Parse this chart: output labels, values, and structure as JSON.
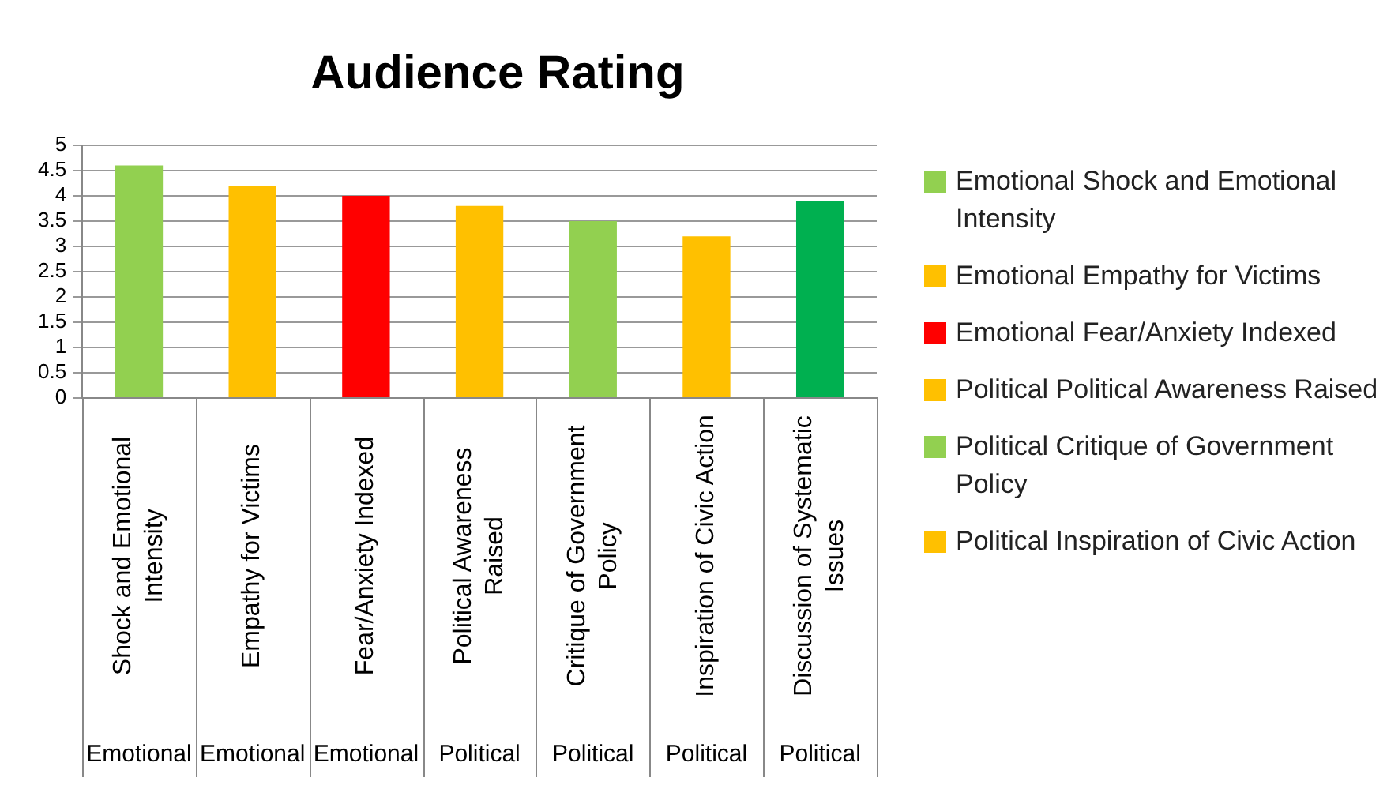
{
  "chart_data": {
    "type": "bar",
    "title": "Audience Rating",
    "categories": [
      "Shock and Emotional Intensity",
      "Empathy for Victims",
      "Fear/Anxiety Indexed",
      "Political Awareness Raised",
      "Critique of Government Policy",
      "Inspiration of Civic Action",
      "Discussion of Systematic Issues"
    ],
    "series": [
      {
        "name": "Emotional   Shock and Emotional Intensity",
        "color": "#92d050",
        "values": [
          4.6,
          null,
          null,
          null,
          null,
          null,
          null
        ]
      },
      {
        "name": "Emotional    Empathy for Victims",
        "color": "#ffc000",
        "values": [
          null,
          4.2,
          null,
          null,
          null,
          null,
          null
        ]
      },
      {
        "name": "Emotional Fear/Anxiety Indexed",
        "color": "#ff0000",
        "values": [
          null,
          null,
          4.0,
          null,
          null,
          null,
          null
        ]
      },
      {
        "name": "Political  Political Awareness Raised",
        "color": "#ffc000",
        "values": [
          null,
          null,
          null,
          3.8,
          null,
          null,
          null
        ]
      },
      {
        "name": "Political  Critique of Government Policy",
        "color": "#92d050",
        "values": [
          null,
          null,
          null,
          null,
          3.5,
          null,
          null
        ]
      },
      {
        "name": "Political Inspiration of Civic Action",
        "color": "#ffc000",
        "values": [
          null,
          null,
          null,
          null,
          null,
          3.2,
          null
        ]
      },
      {
        "color": "#00b050",
        "values": [
          null,
          null,
          null,
          null,
          null,
          null,
          3.9
        ]
      }
    ],
    "annotations": [
      "Emotional",
      "Emotional",
      "Emotional",
      "Political",
      "Political",
      "Political",
      "Political"
    ],
    "ylim": [
      0,
      5
    ],
    "yticks": [
      0,
      0.5,
      1,
      1.5,
      2,
      2.5,
      3,
      3.5,
      4,
      4.5,
      5
    ],
    "grid": "y",
    "legend": "right"
  }
}
